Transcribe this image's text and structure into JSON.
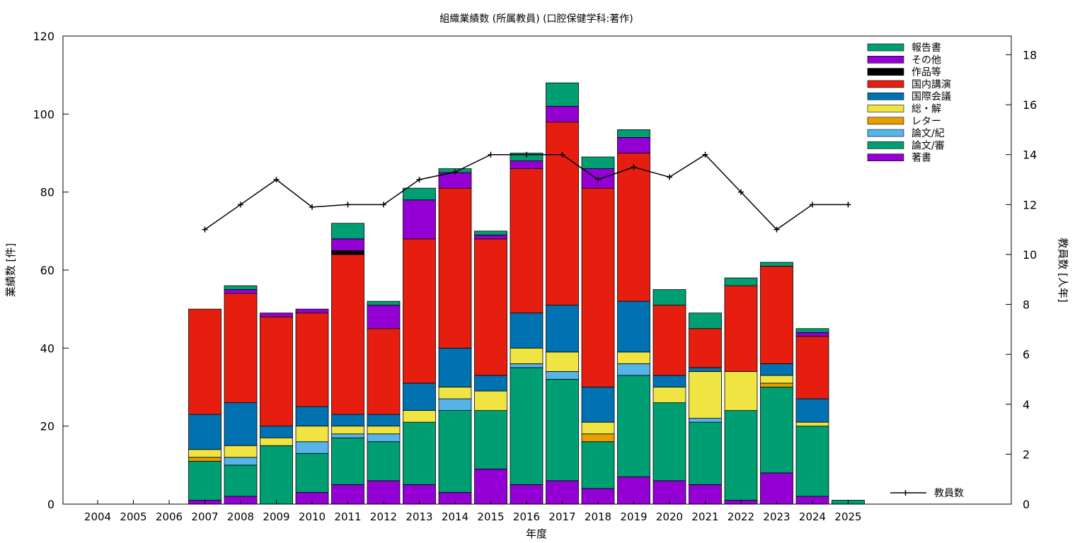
{
  "chart_data": {
    "type": "bar",
    "stacked": true,
    "title": "組織業績数 (所属教員) (口腔保健学科:著作)",
    "xlabel": "年度",
    "ylabel": "業績数 [件]",
    "y2label": "教員数 [人年]",
    "ylim": [
      0,
      120
    ],
    "y2lim": [
      0,
      18.75
    ],
    "yticks": [
      0,
      20,
      40,
      60,
      80,
      100,
      120
    ],
    "y2ticks": [
      0,
      2,
      4,
      6,
      8,
      10,
      12,
      14,
      16,
      18
    ],
    "grid": false,
    "legend_position": "top-right",
    "categories": [
      "2004",
      "2005",
      "2006",
      "2007",
      "2008",
      "2009",
      "2010",
      "2011",
      "2012",
      "2013",
      "2014",
      "2015",
      "2016",
      "2017",
      "2018",
      "2019",
      "2020",
      "2021",
      "2022",
      "2023",
      "2024",
      "2025"
    ],
    "series": [
      {
        "name": "著書",
        "color": "#9400d3",
        "values": [
          0,
          0,
          0,
          1,
          2,
          0,
          3,
          5,
          6,
          5,
          3,
          9,
          5,
          6,
          4,
          7,
          6,
          5,
          1,
          8,
          2,
          0
        ]
      },
      {
        "name": "論文/審",
        "color": "#009e73",
        "values": [
          0,
          0,
          0,
          10,
          8,
          15,
          10,
          12,
          10,
          16,
          21,
          15,
          30,
          26,
          12,
          26,
          20,
          16,
          23,
          22,
          18,
          1
        ]
      },
      {
        "name": "論文/紀",
        "color": "#56b4e9",
        "values": [
          0,
          0,
          0,
          0,
          2,
          0,
          3,
          1,
          2,
          0,
          3,
          0,
          1,
          2,
          0,
          3,
          0,
          1,
          0,
          0,
          0,
          0
        ]
      },
      {
        "name": "レター",
        "color": "#e69f00",
        "values": [
          0,
          0,
          0,
          1,
          0,
          0,
          0,
          0,
          0,
          0,
          0,
          0,
          0,
          0,
          2,
          0,
          0,
          0,
          0,
          1,
          0,
          0
        ]
      },
      {
        "name": "総・解",
        "color": "#f0e442",
        "values": [
          0,
          0,
          0,
          2,
          3,
          2,
          4,
          2,
          2,
          3,
          3,
          5,
          4,
          5,
          3,
          3,
          4,
          12,
          10,
          2,
          1,
          0
        ]
      },
      {
        "name": "国際会議",
        "color": "#0072b2",
        "values": [
          0,
          0,
          0,
          9,
          11,
          3,
          5,
          3,
          3,
          7,
          10,
          4,
          9,
          12,
          9,
          13,
          3,
          1,
          0,
          3,
          6,
          0
        ]
      },
      {
        "name": "国内講演",
        "color": "#e51e10",
        "values": [
          0,
          0,
          0,
          27,
          28,
          28,
          24,
          41,
          22,
          37,
          41,
          35,
          37,
          47,
          51,
          38,
          18,
          10,
          22,
          25,
          16,
          0
        ]
      },
      {
        "name": "作品等",
        "color": "#000000",
        "values": [
          0,
          0,
          0,
          0,
          0,
          0,
          0,
          1,
          0,
          0,
          0,
          0,
          0,
          0,
          0,
          0,
          0,
          0,
          0,
          0,
          0,
          0
        ]
      },
      {
        "name": "その他",
        "color": "#9400d3",
        "values": [
          0,
          0,
          0,
          0,
          1,
          1,
          1,
          3,
          6,
          10,
          4,
          1,
          2,
          4,
          5,
          4,
          0,
          0,
          0,
          0,
          1,
          0
        ]
      },
      {
        "name": "報告書",
        "color": "#009e73",
        "values": [
          0,
          0,
          0,
          0,
          1,
          0,
          0,
          4,
          1,
          3,
          1,
          1,
          2,
          6,
          3,
          2,
          4,
          4,
          2,
          1,
          1,
          0
        ]
      }
    ],
    "line_series": {
      "name": "教員数",
      "axis": "y2",
      "color": "#000000",
      "x": [
        "2007",
        "2008",
        "2009",
        "2010",
        "2011",
        "2012",
        "2013",
        "2014",
        "2015",
        "2016",
        "2017",
        "2018",
        "2019",
        "2020",
        "2021",
        "2022",
        "2023",
        "2024",
        "2025"
      ],
      "values": [
        11,
        12,
        13,
        11.9,
        12,
        12,
        13,
        13.3,
        14,
        14,
        14,
        13,
        13.5,
        13.1,
        14,
        12.5,
        11,
        12,
        12
      ]
    }
  }
}
